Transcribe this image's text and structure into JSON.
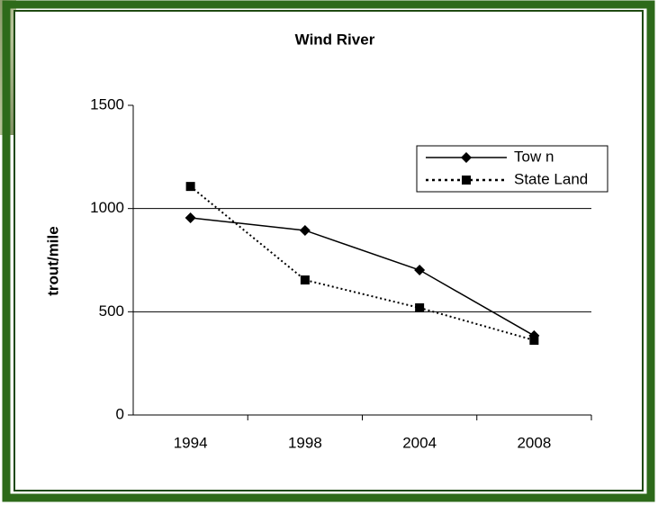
{
  "chart_data": {
    "type": "line",
    "title": "Wind River",
    "y_label": "trout/mile",
    "categories": [
      "1994",
      "1998",
      "2004",
      "2008"
    ],
    "series": [
      {
        "name": "Tow n",
        "color": "#000000",
        "marker": "diamond",
        "dash": "solid",
        "values": [
          955,
          894,
          702,
          384
        ]
      },
      {
        "name": "State Land",
        "color": "#000000",
        "marker": "square",
        "dash": "dotted",
        "values": [
          1107,
          654,
          519,
          362
        ]
      }
    ],
    "ylim": [
      0,
      1500
    ],
    "yticks": [
      0,
      500,
      1000,
      1500
    ],
    "grid": true,
    "legend": "upper right"
  }
}
